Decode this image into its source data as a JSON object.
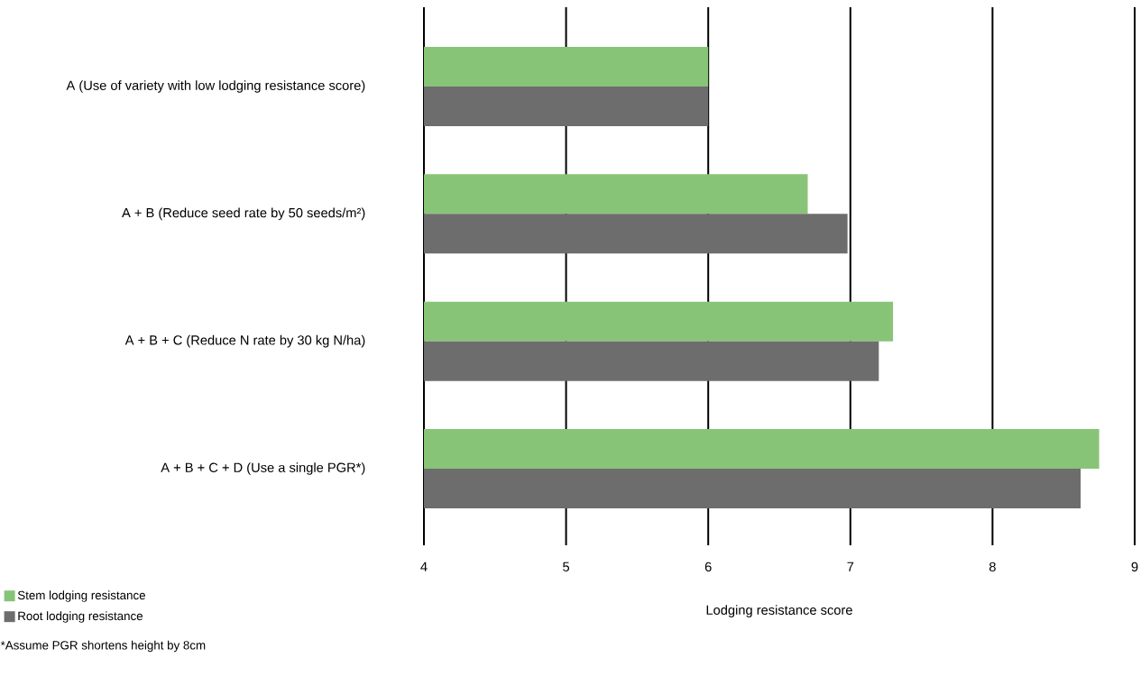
{
  "chart_data": {
    "type": "bar",
    "orientation": "horizontal",
    "xlabel": "Lodging resistance score",
    "categories": [
      "A (Use of variety with low lodging resistance score)",
      "A + B (Reduce seed rate by 50 seeds/m²)",
      "A + B + C (Reduce N rate by 30 kg N/ha)",
      "A + B + C + D (Use a single PGR*)"
    ],
    "series": [
      {
        "name": "Stem lodging resistance",
        "color": "#88c477",
        "values": [
          6.0,
          6.7,
          7.3,
          8.75
        ]
      },
      {
        "name": "Root lodging resistance",
        "color": "#6d6d6d",
        "values": [
          6.0,
          6.98,
          7.2,
          8.62
        ]
      }
    ],
    "xlim": [
      4,
      9
    ],
    "xticks": [
      4,
      5,
      6,
      7,
      8,
      9
    ],
    "grid": "x",
    "legend": "bottom left",
    "annotations": [
      "*Assume PGR shortens height by 8cm"
    ]
  }
}
